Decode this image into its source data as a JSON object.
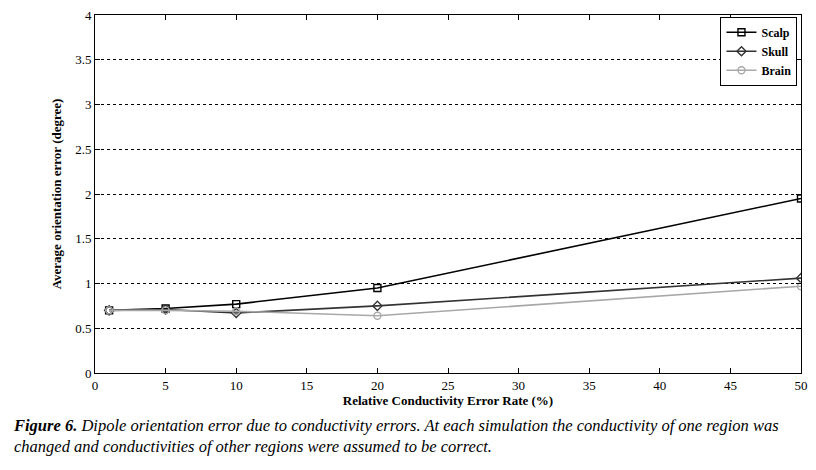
{
  "chart_data": {
    "type": "line",
    "x_label": "Relative Conductivity Error Rate (%)",
    "y_label": "Average orientation error (degree)",
    "x": [
      1,
      5,
      10,
      20,
      50
    ],
    "series": [
      {
        "name": "Scalp",
        "color": "#000000",
        "marker": "square-open",
        "line_style": "solid",
        "values": [
          0.7,
          0.72,
          0.77,
          0.95,
          1.95
        ]
      },
      {
        "name": "Skull",
        "color": "#333333",
        "marker": "diamond-open",
        "line_style": "solid",
        "values": [
          0.7,
          0.71,
          0.67,
          0.75,
          1.06
        ]
      },
      {
        "name": "Brain",
        "color": "#a8a8a8",
        "marker": "circle-open",
        "line_style": "solid",
        "values": [
          0.7,
          0.7,
          0.69,
          0.64,
          0.97
        ]
      }
    ],
    "xlim": [
      0,
      50
    ],
    "xticks": [
      0,
      5,
      10,
      15,
      20,
      25,
      30,
      35,
      40,
      45,
      50
    ],
    "ylim": [
      0,
      4
    ],
    "yticks": [
      0,
      0.5,
      1,
      1.5,
      2,
      2.5,
      3,
      3.5,
      4
    ],
    "grid": true,
    "legend": "top right",
    "caption": {
      "label": "Figure 6.",
      "text": "Dipole orientation error due to conductivity errors. At each simulation the conductivity of one region was changed and conductivities of other regions were assumed to be correct."
    }
  }
}
